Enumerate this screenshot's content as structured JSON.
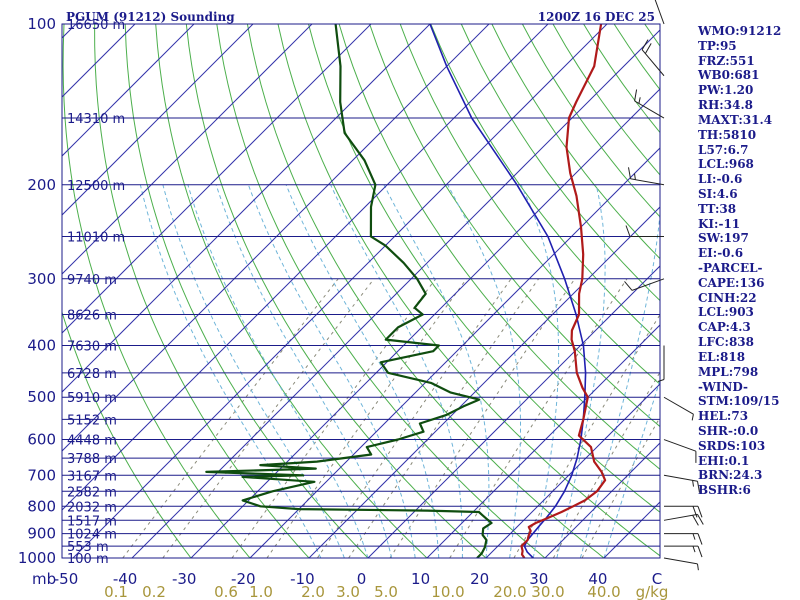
{
  "header": {
    "station": "PGUM (91212) Sounding",
    "time": "1200Z 16 DEC 25"
  },
  "indices": [
    "WMO:91212",
    "TP:95",
    "FRZ:551",
    "WB0:681",
    "PW:1.20",
    "RH:34.8",
    "MAXT:31.4",
    "TH:5810",
    "L57:6.7",
    "LCL:968",
    "LI:-0.6",
    "SI:4.6",
    "TT:38",
    "KI:-11",
    "SW:197",
    "EI:-0.6",
    "-PARCEL-",
    "CAPE:136",
    "CINH:22",
    "LCL:903",
    "CAP:4.3",
    "LFC:838",
    "EL:818",
    "MPL:798",
    "-WIND-",
    "STM:109/15",
    "HEL:73",
    "SHR-:0.0",
    "SRDS:103",
    "EHI:0.1",
    "BRN:24.3",
    "BSHR:6"
  ],
  "chart_data": {
    "type": "skew-t",
    "pressure_ticks": [
      100,
      200,
      300,
      400,
      500,
      600,
      700,
      800,
      900,
      1000
    ],
    "height_levels": [
      {
        "p": 100,
        "label": "16650 m"
      },
      {
        "p": 150,
        "label": "14310 m"
      },
      {
        "p": 200,
        "label": "12500 m"
      },
      {
        "p": 250,
        "label": "11010 m"
      },
      {
        "p": 300,
        "label": "9740 m"
      },
      {
        "p": 350,
        "label": "8626 m"
      },
      {
        "p": 400,
        "label": "7630 m"
      },
      {
        "p": 450,
        "label": "6728 m"
      },
      {
        "p": 500,
        "label": "5910 m"
      },
      {
        "p": 550,
        "label": "5152 m"
      },
      {
        "p": 600,
        "label": "4448 m"
      },
      {
        "p": 650,
        "label": "3788 m"
      },
      {
        "p": 700,
        "label": "3167 m"
      },
      {
        "p": 750,
        "label": "2582 m"
      },
      {
        "p": 800,
        "label": "2032 m"
      },
      {
        "p": 850,
        "label": "1517 m"
      },
      {
        "p": 900,
        "label": "1024 m"
      },
      {
        "p": 950,
        "label": "553 m"
      },
      {
        "p": 1000,
        "label": "100 m"
      }
    ],
    "x_axis": {
      "unit_left": "mb",
      "ticks": [
        "-50",
        "-40",
        "-30",
        "-20",
        "-10",
        "0",
        "10",
        "20",
        "30",
        "40",
        "C"
      ]
    },
    "mixing_ratio_labels": [
      "0.1",
      "0.2",
      "0.6",
      "1.0",
      "2.0",
      "3.0",
      "5.0",
      "10.0",
      "20.0",
      "30.0",
      "40.0",
      "g/kg"
    ],
    "temperature": [
      [
        1000,
        26.5
      ],
      [
        985,
        25.5
      ],
      [
        970,
        25.0
      ],
      [
        950,
        24.0
      ],
      [
        925,
        24.0
      ],
      [
        910,
        23.5
      ],
      [
        890,
        23.0
      ],
      [
        875,
        22.0
      ],
      [
        860,
        22.5
      ],
      [
        845,
        23.5
      ],
      [
        820,
        25.0
      ],
      [
        800,
        26.0
      ],
      [
        780,
        27.0
      ],
      [
        750,
        27.5
      ],
      [
        715,
        27.0
      ],
      [
        690,
        25.0
      ],
      [
        660,
        22.0
      ],
      [
        620,
        19.0
      ],
      [
        590,
        15.0
      ],
      [
        550,
        13.0
      ],
      [
        500,
        10.0
      ],
      [
        480,
        7.5
      ],
      [
        450,
        4.0
      ],
      [
        410,
        0.0
      ],
      [
        390,
        -2.5
      ],
      [
        375,
        -4.0
      ],
      [
        350,
        -5.5
      ],
      [
        320,
        -9.0
      ],
      [
        300,
        -11.0
      ],
      [
        270,
        -15.0
      ],
      [
        240,
        -20.0
      ],
      [
        210,
        -26.0
      ],
      [
        190,
        -31.0
      ],
      [
        170,
        -36.0
      ],
      [
        150,
        -40.5
      ],
      [
        140,
        -42.0
      ],
      [
        120,
        -45.0
      ],
      [
        100,
        -51.0
      ]
    ],
    "dewpoint": [
      [
        1000,
        18.5
      ],
      [
        980,
        18.5
      ],
      [
        955,
        18.0
      ],
      [
        925,
        17.0
      ],
      [
        905,
        15.5
      ],
      [
        880,
        14.5
      ],
      [
        860,
        15.0
      ],
      [
        845,
        13.5
      ],
      [
        830,
        12.0
      ],
      [
        820,
        11.0
      ],
      [
        815,
        2.0
      ],
      [
        810,
        -20.0
      ],
      [
        800,
        -27.0
      ],
      [
        780,
        -31.0
      ],
      [
        750,
        -27.5
      ],
      [
        720,
        -22.0
      ],
      [
        705,
        -35.0
      ],
      [
        700,
        -25.0
      ],
      [
        690,
        -42.0
      ],
      [
        680,
        -24.0
      ],
      [
        670,
        -34.0
      ],
      [
        660,
        -25.0
      ],
      [
        640,
        -17.0
      ],
      [
        620,
        -19.0
      ],
      [
        600,
        -15.0
      ],
      [
        580,
        -12.0
      ],
      [
        560,
        -14.0
      ],
      [
        540,
        -11.0
      ],
      [
        520,
        -9.5
      ],
      [
        505,
        -8.0
      ],
      [
        490,
        -14.0
      ],
      [
        470,
        -19.0
      ],
      [
        450,
        -28.0
      ],
      [
        430,
        -31.0
      ],
      [
        410,
        -24.0
      ],
      [
        400,
        -24.0
      ],
      [
        390,
        -34.0
      ],
      [
        370,
        -34.0
      ],
      [
        350,
        -32.0
      ],
      [
        340,
        -34.5
      ],
      [
        320,
        -35.0
      ],
      [
        300,
        -39.0
      ],
      [
        280,
        -44.0
      ],
      [
        260,
        -50.0
      ],
      [
        250,
        -54.0
      ],
      [
        220,
        -59.0
      ],
      [
        200,
        -62.0
      ],
      [
        180,
        -68.0
      ],
      [
        160,
        -76.0
      ],
      [
        140,
        -82.0
      ],
      [
        120,
        -88.0
      ],
      [
        100,
        -96.0
      ]
    ],
    "parcel": [
      [
        1000,
        28.0
      ],
      [
        975,
        26.0
      ],
      [
        950,
        24.5
      ],
      [
        925,
        24.0
      ],
      [
        900,
        23.8
      ],
      [
        870,
        23.6
      ],
      [
        840,
        23.4
      ],
      [
        800,
        23.0
      ],
      [
        750,
        22.0
      ],
      [
        700,
        20.5
      ],
      [
        650,
        18.5
      ],
      [
        600,
        16.0
      ],
      [
        550,
        13.0
      ],
      [
        500,
        9.5
      ],
      [
        450,
        5.5
      ],
      [
        400,
        0.5
      ],
      [
        350,
        -6.0
      ],
      [
        300,
        -14.0
      ],
      [
        250,
        -24.0
      ],
      [
        200,
        -38.0
      ],
      [
        150,
        -57.0
      ],
      [
        120,
        -70.0
      ],
      [
        100,
        -80.0
      ]
    ],
    "wind_barbs": [
      {
        "p": 1000,
        "dir": 100,
        "spd": 5
      },
      {
        "p": 950,
        "dir": 90,
        "spd": 15
      },
      {
        "p": 900,
        "dir": 90,
        "spd": 15
      },
      {
        "p": 850,
        "dir": 80,
        "spd": 20
      },
      {
        "p": 800,
        "dir": 90,
        "spd": 20
      },
      {
        "p": 700,
        "dir": 100,
        "spd": 15
      },
      {
        "p": 600,
        "dir": 110,
        "spd": 10
      },
      {
        "p": 500,
        "dir": 120,
        "spd": 5
      },
      {
        "p": 400,
        "dir": 180,
        "spd": 5
      },
      {
        "p": 300,
        "dir": 250,
        "spd": 10
      },
      {
        "p": 250,
        "dir": 270,
        "spd": 10
      },
      {
        "p": 200,
        "dir": 280,
        "spd": 15
      },
      {
        "p": 150,
        "dir": 300,
        "spd": 15
      },
      {
        "p": 125,
        "dir": 320,
        "spd": 20
      },
      {
        "p": 100,
        "dir": 340,
        "spd": 10
      }
    ],
    "grid": true,
    "colors": {
      "isobar": "#1b1b8a",
      "isotherm": "#3333aa",
      "dry_adiabat": "#4caf4c",
      "moist_adiabat": "#6fb5d9",
      "mixing_ratio": "#8a8a7a",
      "temperature": "#b01a1a",
      "dewpoint": "#0f4d0f",
      "parcel": "#2020b0",
      "barb": "#222222",
      "label": "#1b1b8a",
      "mix_label": "#a8963c"
    }
  }
}
